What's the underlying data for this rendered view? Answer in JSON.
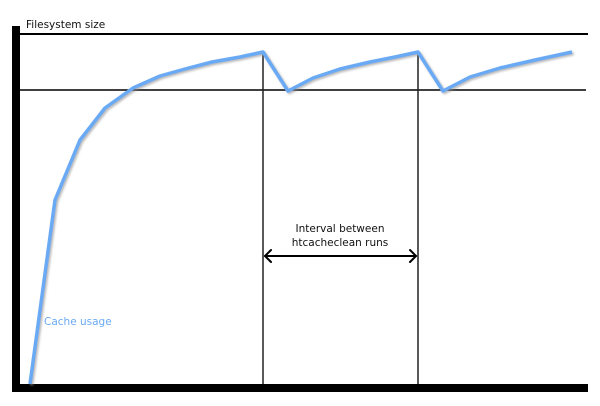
{
  "diagram": {
    "y_axis_label": "Filesystem size",
    "series_label": "Cache usage",
    "interval_label_line1": "Interval between",
    "interval_label_line2": "htcacheclean runs",
    "colors": {
      "cache_line": "#6aa9f4",
      "axes": "#000000"
    }
  }
}
